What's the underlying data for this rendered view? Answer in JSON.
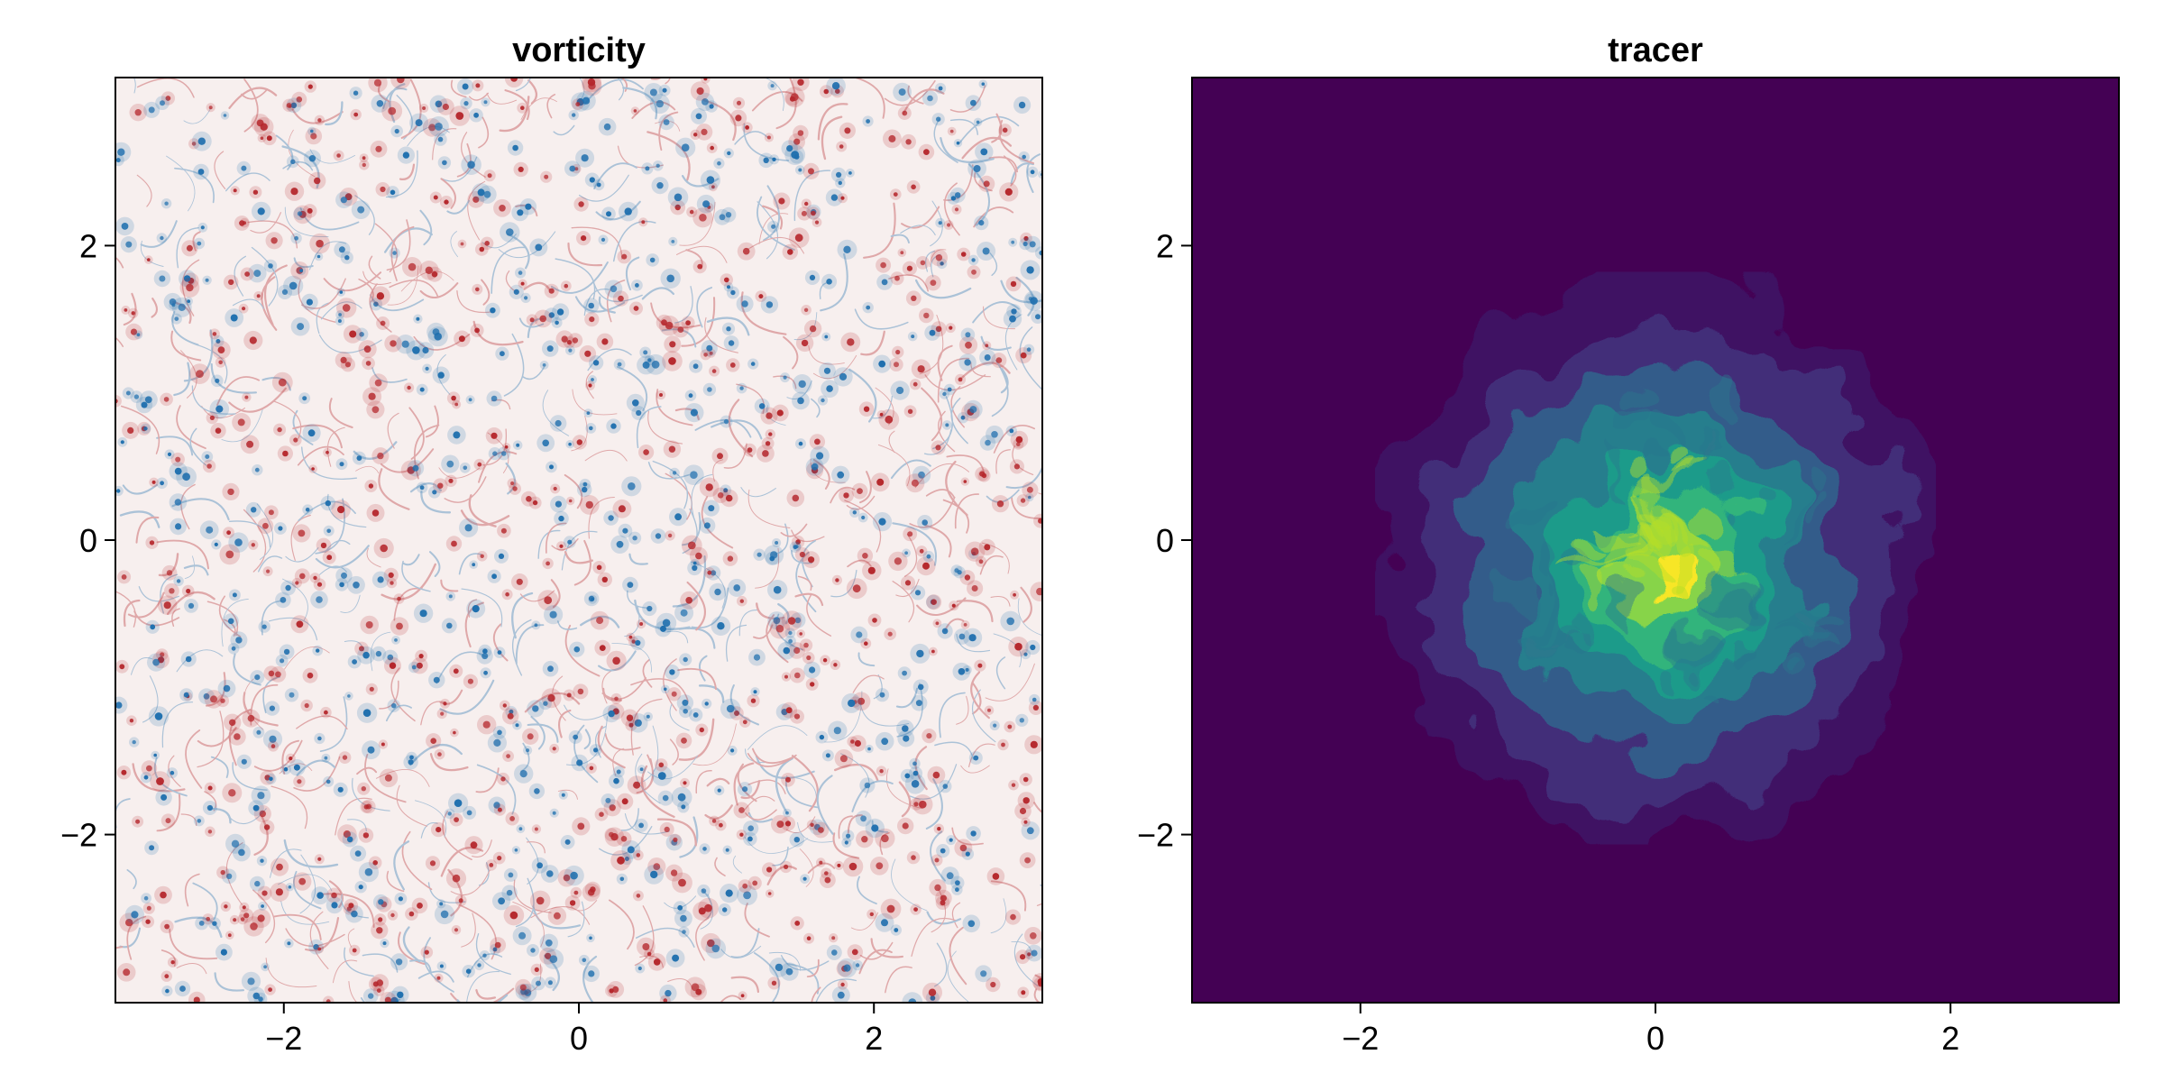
{
  "chart_data": [
    {
      "type": "heatmap",
      "title": "vorticity",
      "xlabel": "",
      "ylabel": "",
      "xlim": [
        -3.14159,
        3.14159
      ],
      "ylim": [
        -3.14159,
        3.14159
      ],
      "xticks": [
        -2,
        0,
        2
      ],
      "yticks": [
        -2,
        0,
        2
      ],
      "xtick_labels": [
        "−2",
        "0",
        "2"
      ],
      "ytick_labels": [
        "−2",
        "0",
        "2"
      ],
      "colormap": "balance",
      "colors": {
        "negative": "#1f6fae",
        "zero": "#f7efee",
        "positive": "#b5272c"
      },
      "field": "random turbulent point vortices",
      "grid": false
    },
    {
      "type": "heatmap",
      "title": "tracer",
      "xlabel": "",
      "ylabel": "",
      "xlim": [
        -3.14159,
        3.14159
      ],
      "ylim": [
        -3.14159,
        3.14159
      ],
      "xticks": [
        -2,
        0,
        2
      ],
      "yticks": [
        -2,
        0,
        2
      ],
      "xtick_labels": [
        "−2",
        "0",
        "2"
      ],
      "ytick_labels": [
        "−2",
        "0",
        "2"
      ],
      "colormap": "viridis",
      "colors": {
        "low": "#440154",
        "mid": "#21918c",
        "high": "#fde725"
      },
      "field": "diffused tracer blob centered near origin",
      "grid": false
    }
  ]
}
